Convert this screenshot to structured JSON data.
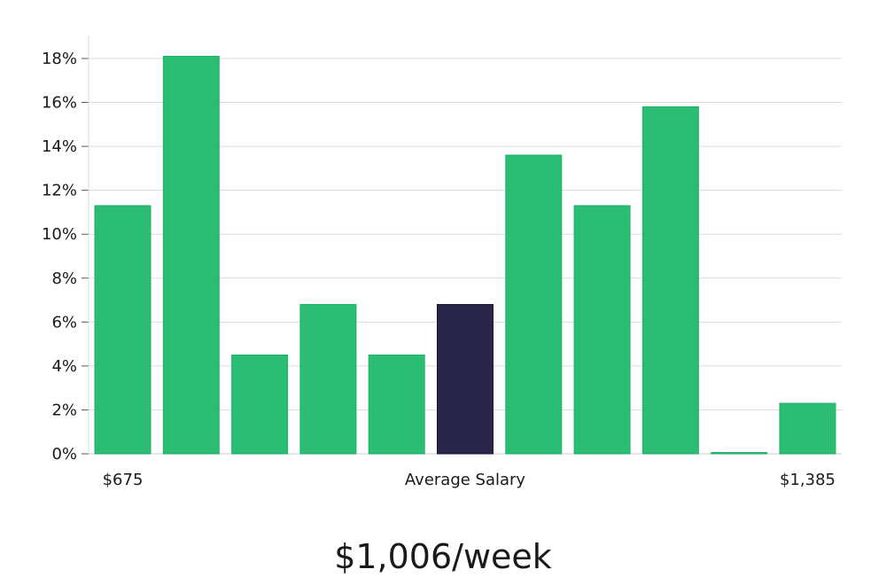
{
  "chart_data": {
    "type": "bar",
    "categories": [
      "$675",
      "",
      "",
      "",
      "",
      "Average Salary",
      "",
      "",
      "",
      "",
      "$1,385"
    ],
    "values": [
      11.3,
      18.1,
      4.5,
      6.8,
      4.5,
      6.8,
      13.6,
      11.3,
      15.8,
      0.0,
      2.3
    ],
    "highlight_index": 5,
    "ylim": [
      0,
      19
    ],
    "yticks": [
      0,
      2,
      4,
      6,
      8,
      10,
      12,
      14,
      16,
      18
    ],
    "ytick_format": "%",
    "grid": true,
    "colors": {
      "bar": "#2bbd74",
      "highlight": "#28244a",
      "grid": "#dcdcdc",
      "axis": "#cccccc"
    }
  },
  "labels": {
    "x_start": "$675",
    "x_middle": "Average Salary",
    "x_end": "$1,385"
  },
  "headline": "$1,006/week"
}
